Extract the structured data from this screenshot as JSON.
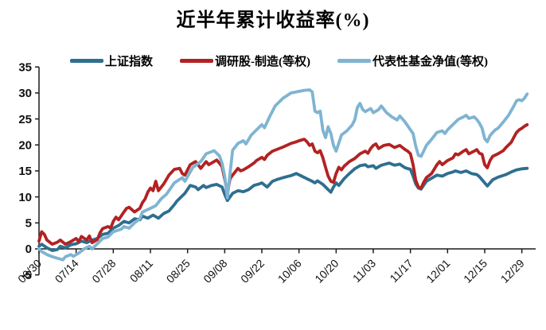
{
  "chart_data": {
    "type": "line",
    "title": "近半年累计收益率(%)",
    "xlabel": "",
    "ylabel": "",
    "ylim": [
      -5,
      35
    ],
    "y_ticks": [
      35,
      30,
      25,
      20,
      15,
      10,
      5,
      0,
      -5
    ],
    "x_tick_labels": [
      "06/30",
      "07/14",
      "07/28",
      "08/11",
      "08/25",
      "09/08",
      "09/22",
      "10/06",
      "10/20",
      "11/03",
      "11/17",
      "12/01",
      "12/15",
      "12/29"
    ],
    "x_tick_interval_days": 14,
    "x_range_days": [
      0,
      187
    ],
    "grid": false,
    "legend_position": "top",
    "axis_color": "#1a1a1a",
    "series": [
      {
        "name": "上证指数",
        "color": "#2E6F8F",
        "x": [
          0,
          1,
          3,
          5,
          7,
          8,
          10,
          12,
          14,
          16,
          18,
          20,
          22,
          24,
          26,
          28,
          30,
          32,
          34,
          36,
          38,
          39,
          41,
          43,
          45,
          47,
          49,
          51,
          52,
          54,
          55,
          57,
          59,
          60,
          62,
          63,
          65,
          67,
          69,
          70,
          71,
          73,
          75,
          77,
          79,
          81,
          83,
          84,
          85,
          86,
          88,
          90,
          92,
          95,
          97,
          99,
          101,
          103,
          104,
          105,
          107,
          109,
          110,
          111,
          112,
          113,
          115,
          117,
          119,
          121,
          123,
          124,
          126,
          127,
          129,
          132,
          134,
          136,
          138,
          140,
          141,
          142,
          143,
          144,
          146,
          148,
          150,
          152,
          154,
          156,
          157,
          159,
          161,
          163,
          165,
          166,
          168,
          169,
          171,
          173,
          176,
          178,
          180,
          182,
          184
        ],
        "values": [
          0.5,
          0.9,
          0.2,
          -0.3,
          -0.1,
          0.5,
          0.2,
          0.8,
          1.0,
          1.5,
          1.2,
          1.7,
          2.0,
          2.8,
          3.0,
          4.0,
          4.5,
          5.3,
          5.0,
          5.8,
          5.6,
          6.3,
          5.9,
          6.5,
          5.9,
          6.8,
          7.3,
          8.5,
          9.2,
          10.2,
          10.7,
          12.2,
          11.9,
          11.4,
          12.2,
          11.8,
          12.2,
          12.4,
          11.9,
          10.5,
          9.3,
          10.7,
          11.2,
          11.0,
          11.4,
          12.2,
          12.5,
          12.7,
          12.3,
          11.9,
          13.0,
          13.4,
          13.7,
          14.1,
          14.5,
          14.0,
          13.5,
          13.0,
          12.7,
          13.1,
          12.4,
          11.4,
          10.9,
          11.9,
          12.7,
          12.2,
          13.5,
          14.5,
          15.4,
          16.0,
          16.2,
          15.8,
          16.0,
          15.5,
          16.1,
          16.5,
          16.1,
          16.3,
          15.6,
          15.3,
          14.0,
          12.5,
          11.7,
          11.5,
          13.0,
          13.6,
          14.2,
          14.0,
          14.5,
          14.8,
          15.0,
          14.7,
          15.0,
          14.5,
          14.3,
          13.9,
          12.7,
          12.1,
          13.3,
          13.8,
          14.3,
          14.8,
          15.2,
          15.4,
          15.5
        ]
      },
      {
        "name": "调研股-制造(等权)",
        "color": "#B22222",
        "x": [
          0,
          1,
          2,
          3,
          5,
          7,
          8,
          10,
          12,
          14,
          15,
          16,
          18,
          19,
          20,
          22,
          23,
          24,
          26,
          27,
          28,
          29,
          30,
          32,
          33,
          34,
          36,
          38,
          39,
          40,
          41,
          42,
          43,
          44,
          45,
          47,
          49,
          51,
          53,
          54,
          55,
          57,
          59,
          61,
          63,
          64,
          65,
          67,
          68,
          69,
          70,
          71,
          72,
          73,
          75,
          76,
          77,
          79,
          81,
          82,
          84,
          85,
          86,
          88,
          90,
          92,
          95,
          97,
          98,
          100,
          101,
          102,
          103,
          104,
          105,
          106,
          107,
          108,
          109,
          110,
          111,
          112,
          113,
          114,
          115,
          117,
          119,
          121,
          123,
          124,
          125,
          126,
          127,
          128,
          130,
          132,
          134,
          136,
          138,
          139,
          140,
          141,
          142,
          143,
          144,
          145,
          146,
          148,
          150,
          151,
          152,
          154,
          156,
          157,
          158,
          160,
          161,
          162,
          164,
          165,
          166,
          167,
          168,
          169,
          170,
          171,
          173,
          175,
          176,
          178,
          179,
          180,
          181,
          182,
          183,
          184
        ],
        "values": [
          1.5,
          3.3,
          2.8,
          1.7,
          0.9,
          1.3,
          1.7,
          0.9,
          1.4,
          2.0,
          1.4,
          2.4,
          1.7,
          2.5,
          1.2,
          1.8,
          3.1,
          3.9,
          4.3,
          4.0,
          5.3,
          6.1,
          5.6,
          7.1,
          7.8,
          8.0,
          7.1,
          7.8,
          8.9,
          9.6,
          10.9,
          11.7,
          11.2,
          13.0,
          11.2,
          12.5,
          14.2,
          15.3,
          15.5,
          14.5,
          14.2,
          16.2,
          16.8,
          15.5,
          16.8,
          16.2,
          16.5,
          17.1,
          16.5,
          15.8,
          13.5,
          10.7,
          13.5,
          14.2,
          15.5,
          15.0,
          15.2,
          15.8,
          16.5,
          17.0,
          17.6,
          17.2,
          18.0,
          18.8,
          19.2,
          19.6,
          20.3,
          20.6,
          20.8,
          21.1,
          20.6,
          19.9,
          20.2,
          18.8,
          18.5,
          18.9,
          17.5,
          15.7,
          14.0,
          13.0,
          12.8,
          14.5,
          15.7,
          15.2,
          15.9,
          16.8,
          17.4,
          18.3,
          18.8,
          18.4,
          19.3,
          19.9,
          20.2,
          19.3,
          19.9,
          20.1,
          19.5,
          19.9,
          19.1,
          18.8,
          18.3,
          16.2,
          13.2,
          11.9,
          11.7,
          12.8,
          13.7,
          14.5,
          16.2,
          16.8,
          16.2,
          17.0,
          17.5,
          18.3,
          18.1,
          18.8,
          19.1,
          18.3,
          18.8,
          19.1,
          18.4,
          18.2,
          16.2,
          15.6,
          17.0,
          17.8,
          18.3,
          18.9,
          19.5,
          20.5,
          21.5,
          22.4,
          22.9,
          23.2,
          23.6,
          23.9
        ]
      },
      {
        "name": "代表性基金净值(等权)",
        "color": "#7FB4D2",
        "x": [
          0,
          1,
          2,
          3,
          5,
          7,
          9,
          10,
          12,
          13,
          15,
          17,
          19,
          20,
          22,
          24,
          26,
          28,
          31,
          32,
          34,
          36,
          38,
          39,
          42,
          44,
          46,
          48,
          51,
          54,
          55,
          58,
          61,
          63,
          66,
          68,
          69,
          70,
          71,
          72,
          73,
          75,
          77,
          78,
          80,
          82,
          84,
          85,
          87,
          89,
          92,
          95,
          98,
          100,
          102,
          103,
          104,
          105,
          106,
          107,
          108,
          109,
          110,
          111,
          112,
          114,
          116,
          118,
          119,
          120,
          121,
          122,
          123,
          125,
          126,
          128,
          129,
          131,
          133,
          135,
          136,
          138,
          140,
          141,
          142,
          143,
          144,
          145,
          146,
          148,
          150,
          152,
          153,
          154,
          156,
          158,
          160,
          161,
          162,
          164,
          165,
          166,
          167,
          168,
          169,
          170,
          171,
          172,
          173,
          175,
          177,
          178,
          179,
          180,
          181,
          182,
          183,
          184
        ],
        "values": [
          0.0,
          -0.5,
          -0.8,
          -1.1,
          -1.5,
          -1.8,
          -2.1,
          -1.5,
          -1.1,
          -1.4,
          -0.8,
          0.0,
          0.5,
          0.0,
          1.0,
          2.0,
          2.3,
          3.3,
          3.8,
          4.3,
          4.0,
          5.0,
          5.8,
          7.1,
          7.8,
          8.3,
          9.6,
          10.5,
          12.7,
          13.7,
          13.0,
          15.7,
          16.8,
          18.3,
          18.9,
          17.9,
          16.5,
          14.0,
          9.8,
          14.5,
          19.0,
          20.3,
          20.8,
          20.2,
          21.9,
          22.9,
          23.9,
          23.3,
          25.5,
          27.5,
          29.0,
          30.0,
          30.3,
          30.5,
          30.6,
          30.2,
          26.5,
          26.2,
          26.5,
          22.8,
          21.4,
          23.5,
          22.2,
          19.9,
          18.8,
          21.9,
          22.7,
          23.8,
          24.8,
          27.2,
          28.0,
          26.8,
          26.4,
          27.0,
          26.2,
          26.8,
          27.5,
          26.2,
          25.4,
          24.8,
          25.6,
          24.4,
          22.9,
          22.2,
          19.8,
          18.0,
          17.8,
          18.8,
          19.9,
          21.1,
          22.4,
          22.7,
          22.2,
          22.9,
          23.9,
          24.9,
          25.4,
          25.7,
          25.1,
          25.4,
          24.9,
          24.2,
          23.2,
          21.2,
          20.6,
          21.8,
          22.4,
          22.9,
          23.2,
          24.4,
          25.7,
          26.6,
          27.5,
          28.5,
          28.7,
          28.5,
          29.0,
          29.8
        ]
      }
    ]
  }
}
